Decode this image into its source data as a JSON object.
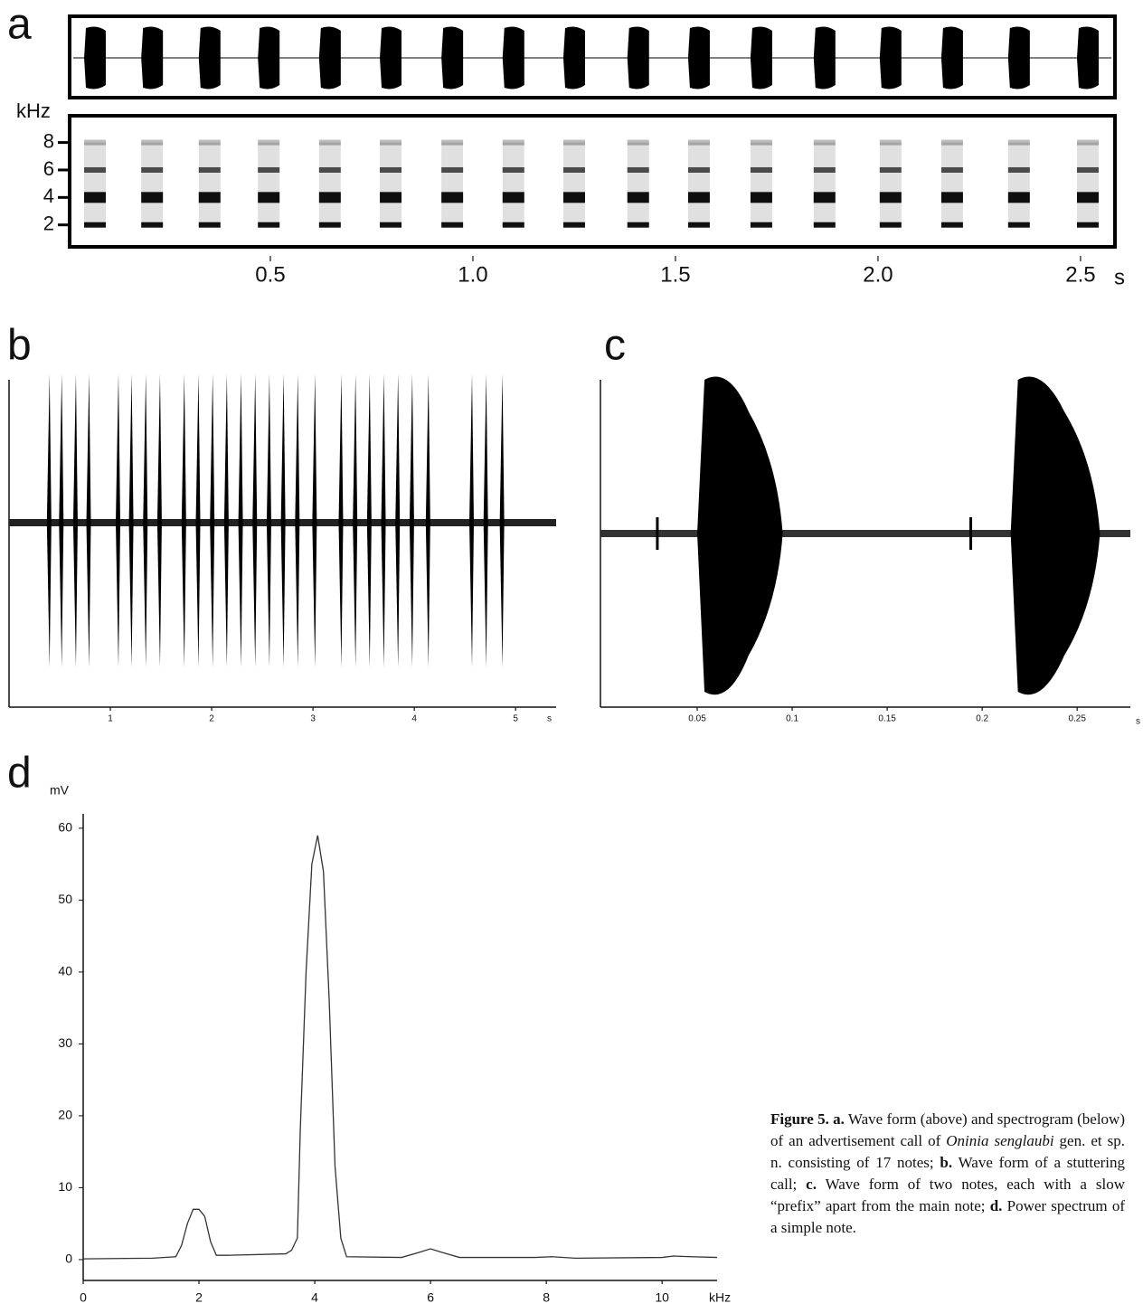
{
  "chart_data": [
    {
      "type": "waveform-spectrogram",
      "label": "a",
      "xlim": [
        0,
        2.585
      ],
      "xticks": [
        0.5,
        {
          "value": 1,
          "label": "1.0"
        },
        1.5,
        {
          "value": 2,
          "label": "2.0"
        },
        2.5
      ],
      "x_label": "s",
      "ylim": [
        0.4,
        9.95
      ],
      "yticks": [
        2,
        4,
        6,
        8
      ],
      "y_label": "kHz",
      "bands": [
        2,
        4,
        6,
        8
      ],
      "notes": [
        0.067,
        0.208,
        0.35,
        0.496,
        0.647,
        0.797,
        0.949,
        1.1,
        1.25,
        1.408,
        1.558,
        1.712,
        1.868,
        2.031,
        2.183,
        2.348,
        2.518
      ]
    },
    {
      "type": "waveform",
      "label": "b",
      "xlim": [
        0,
        5.4
      ],
      "xticks": [
        1,
        2,
        3,
        4,
        5
      ],
      "x_label": "s",
      "pulses": [
        0.4,
        0.52,
        0.66,
        0.79,
        1.08,
        1.21,
        1.35,
        1.49,
        1.73,
        1.87,
        2.01,
        2.15,
        2.29,
        2.43,
        2.57,
        2.71,
        2.85,
        3.02,
        3.28,
        3.42,
        3.56,
        3.7,
        3.84,
        3.98,
        4.14,
        4.57,
        4.71,
        4.87
      ]
    },
    {
      "type": "burst",
      "label": "c",
      "xlim": [
        0,
        0.278
      ],
      "xticks": [
        0.05,
        0.1,
        0.15,
        0.2,
        0.25
      ],
      "x_label": "s",
      "notes": [
        {
          "prefix": 0.029,
          "start": 0.05,
          "end": 0.095
        },
        {
          "prefix": 0.194,
          "start": 0.215,
          "end": 0.262
        }
      ]
    },
    {
      "type": "line",
      "label": "d",
      "color": "#333333",
      "xlim": [
        0,
        10.95
      ],
      "xticks": [
        0,
        2,
        4,
        6,
        8,
        10
      ],
      "x_label": "kHz",
      "ylim": [
        -2.9,
        62
      ],
      "yticks": [
        0,
        10,
        20,
        30,
        40,
        50,
        60
      ],
      "y_label": "mV",
      "x": [
        0,
        1.2,
        1.6,
        1.7,
        1.8,
        1.9,
        2.0,
        2.1,
        2.2,
        2.3,
        2.5,
        3.5,
        3.6,
        3.7,
        3.75,
        3.85,
        3.95,
        4.05,
        4.15,
        4.25,
        4.35,
        4.45,
        4.55,
        5.5,
        5.8,
        6.0,
        6.2,
        6.5,
        7.8,
        8.1,
        8.5,
        10.0,
        10.2,
        10.5,
        10.95
      ],
      "values": [
        0.1,
        0.2,
        0.4,
        2,
        5,
        7,
        7,
        6,
        2.5,
        0.6,
        0.6,
        0.8,
        1.3,
        3,
        18,
        40,
        55,
        59,
        54,
        36,
        13,
        3,
        0.4,
        0.3,
        1,
        1.5,
        1,
        0.3,
        0.3,
        0.4,
        0.2,
        0.3,
        0.5,
        0.4,
        0.3
      ]
    }
  ],
  "caption": {
    "segments": [
      {
        "text": "Figure 5. a.",
        "style": "bold"
      },
      {
        "text": " Wave form (above) and spectrogram (below) of an advertisement call of ",
        "style": "normal"
      },
      {
        "text": "Oninia senglaubi",
        "style": "italic"
      },
      {
        "text": " gen. et sp. n. consisting of 17 notes; ",
        "style": "normal"
      },
      {
        "text": "b.",
        "style": "bold"
      },
      {
        "text": " Wave form of a stuttering call; ",
        "style": "normal"
      },
      {
        "text": "c.",
        "style": "bold"
      },
      {
        "text": " Wave form of two notes, each with a slow “prefix” apart from the main note; ",
        "style": "normal"
      },
      {
        "text": "d.",
        "style": "bold"
      },
      {
        "text": " Power spectrum of a simple note.",
        "style": "normal"
      }
    ]
  }
}
